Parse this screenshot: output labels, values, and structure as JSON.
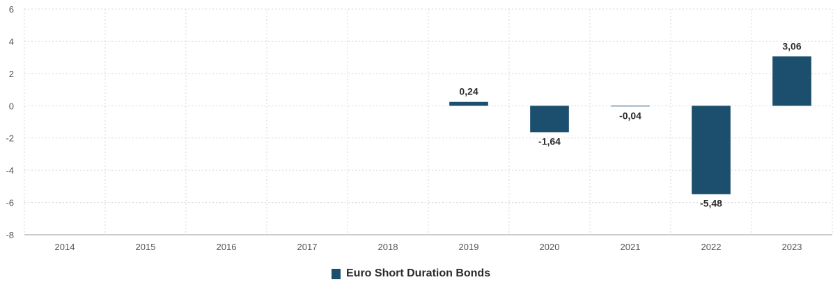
{
  "chart_data": {
    "type": "bar",
    "categories": [
      "2014",
      "2015",
      "2016",
      "2017",
      "2018",
      "2019",
      "2020",
      "2021",
      "2022",
      "2023"
    ],
    "series": [
      {
        "name": "Euro Short Duration Bonds",
        "values": [
          null,
          null,
          null,
          null,
          null,
          0.24,
          -1.64,
          -0.04,
          -5.48,
          3.06
        ],
        "labels": [
          "",
          "",
          "",
          "",
          "",
          "0,24",
          "-1,64",
          "-0,04",
          "-5,48",
          "3,06"
        ]
      }
    ],
    "ylim": [
      -8,
      6
    ],
    "yticks": [
      6,
      4,
      2,
      0,
      -2,
      -4,
      -6,
      -8
    ],
    "grid": true,
    "legend_position": "bottom-center",
    "bar_color": "#1b4f6d"
  },
  "legend": {
    "label": "Euro Short Duration Bonds"
  }
}
